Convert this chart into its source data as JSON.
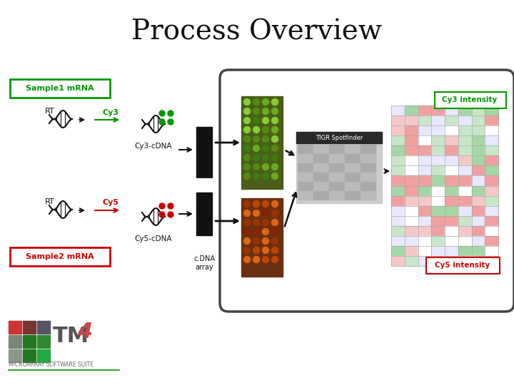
{
  "title": "Process Overview",
  "title_fontsize": 28,
  "bg_color": "#ffffff",
  "sample1_label": "Sample1 mRNA",
  "sample2_label": "Sample2 mRNA",
  "cy3_label": "Cy3",
  "cy5_label": "Cy5",
  "cy3_cdna_label": "Cy3-cDNA",
  "cy5_cdna_label": "Cy5-cDNA",
  "cdna_array_label": "c.DNA\narray",
  "cy3_intensity_label": "Cy3 intensity",
  "cy5_intensity_label": "Cy5 intensity",
  "tigr_label": "TIGR Spotfinder",
  "rt_label": "RT",
  "green_color": "#009900",
  "red_color": "#cc0000",
  "black": "#111111",
  "microarray_text": "MICROARRAY SOFTWARE SUITE"
}
